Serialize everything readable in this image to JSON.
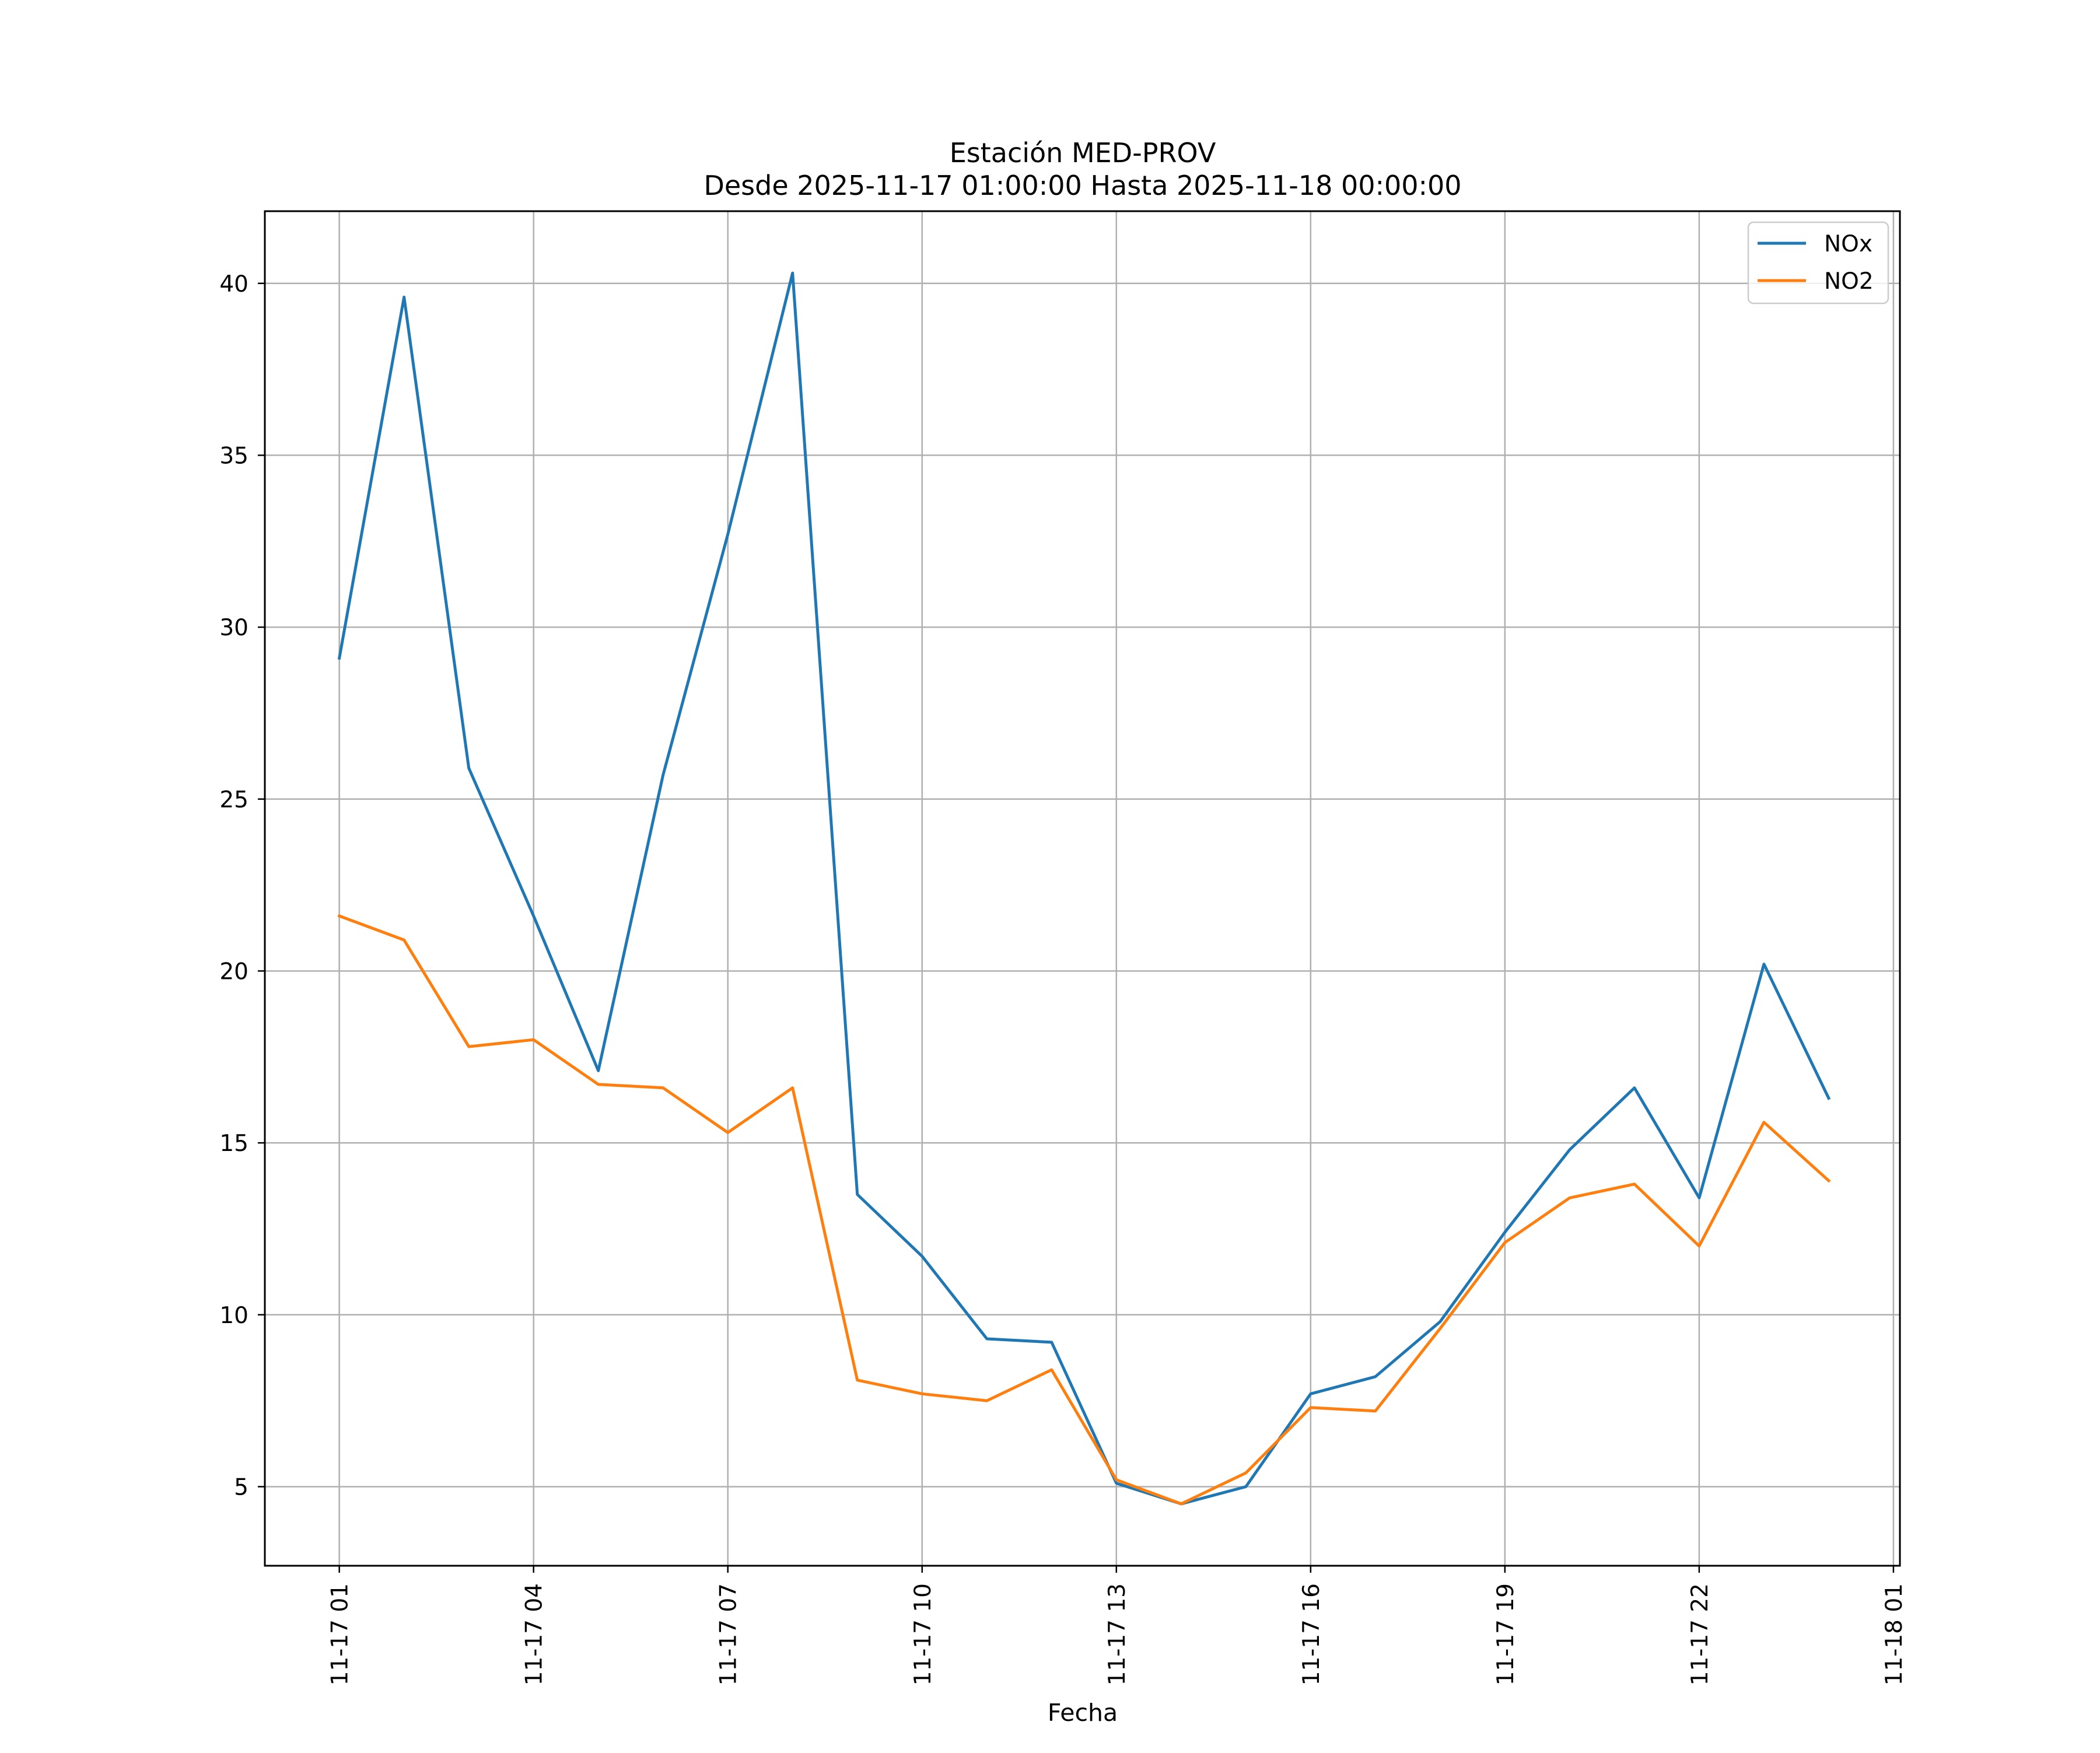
{
  "chart_data": {
    "type": "line",
    "title": "Estación MED-PROV",
    "subtitle": "Desde 2025-11-17 01:00:00 Hasta 2025-11-18 00:00:00",
    "xlabel": "Fecha",
    "ylabel": "",
    "grid": true,
    "legend_position": "top-right",
    "x_hours": [
      1,
      2,
      3,
      4,
      5,
      6,
      7,
      8,
      9,
      10,
      11,
      12,
      13,
      14,
      15,
      16,
      17,
      18,
      19,
      20,
      21,
      22,
      23,
      24
    ],
    "xlim": [
      -0.15,
      25.1
    ],
    "ylim": [
      2.7,
      42.1
    ],
    "x_ticks": [
      {
        "hour": 1,
        "label": "11-17 01"
      },
      {
        "hour": 4,
        "label": "11-17 04"
      },
      {
        "hour": 7,
        "label": "11-17 07"
      },
      {
        "hour": 10,
        "label": "11-17 10"
      },
      {
        "hour": 13,
        "label": "11-17 13"
      },
      {
        "hour": 16,
        "label": "11-17 16"
      },
      {
        "hour": 19,
        "label": "11-17 19"
      },
      {
        "hour": 22,
        "label": "11-17 22"
      },
      {
        "hour": 25,
        "label": "11-18 01"
      }
    ],
    "y_ticks": [
      {
        "value": 5,
        "label": "5"
      },
      {
        "value": 10,
        "label": "10"
      },
      {
        "value": 15,
        "label": "15"
      },
      {
        "value": 20,
        "label": "20"
      },
      {
        "value": 25,
        "label": "25"
      },
      {
        "value": 30,
        "label": "30"
      },
      {
        "value": 35,
        "label": "35"
      },
      {
        "value": 40,
        "label": "40"
      }
    ],
    "series": [
      {
        "name": "NOx",
        "color": "#1f77b4",
        "values": [
          29.1,
          39.6,
          25.9,
          21.6,
          17.1,
          25.7,
          32.7,
          40.3,
          13.5,
          11.7,
          9.3,
          9.2,
          5.1,
          4.5,
          5.0,
          7.7,
          8.2,
          9.8,
          12.4,
          14.8,
          16.6,
          13.4,
          20.2,
          16.3
        ]
      },
      {
        "name": "NO2",
        "color": "#ff7f0e",
        "values": [
          21.6,
          20.9,
          17.8,
          18.0,
          16.7,
          16.6,
          15.3,
          16.6,
          8.1,
          7.7,
          7.5,
          8.4,
          5.2,
          4.5,
          5.4,
          7.3,
          7.2,
          9.6,
          12.1,
          13.4,
          13.8,
          12.0,
          15.6,
          13.9
        ]
      }
    ]
  }
}
